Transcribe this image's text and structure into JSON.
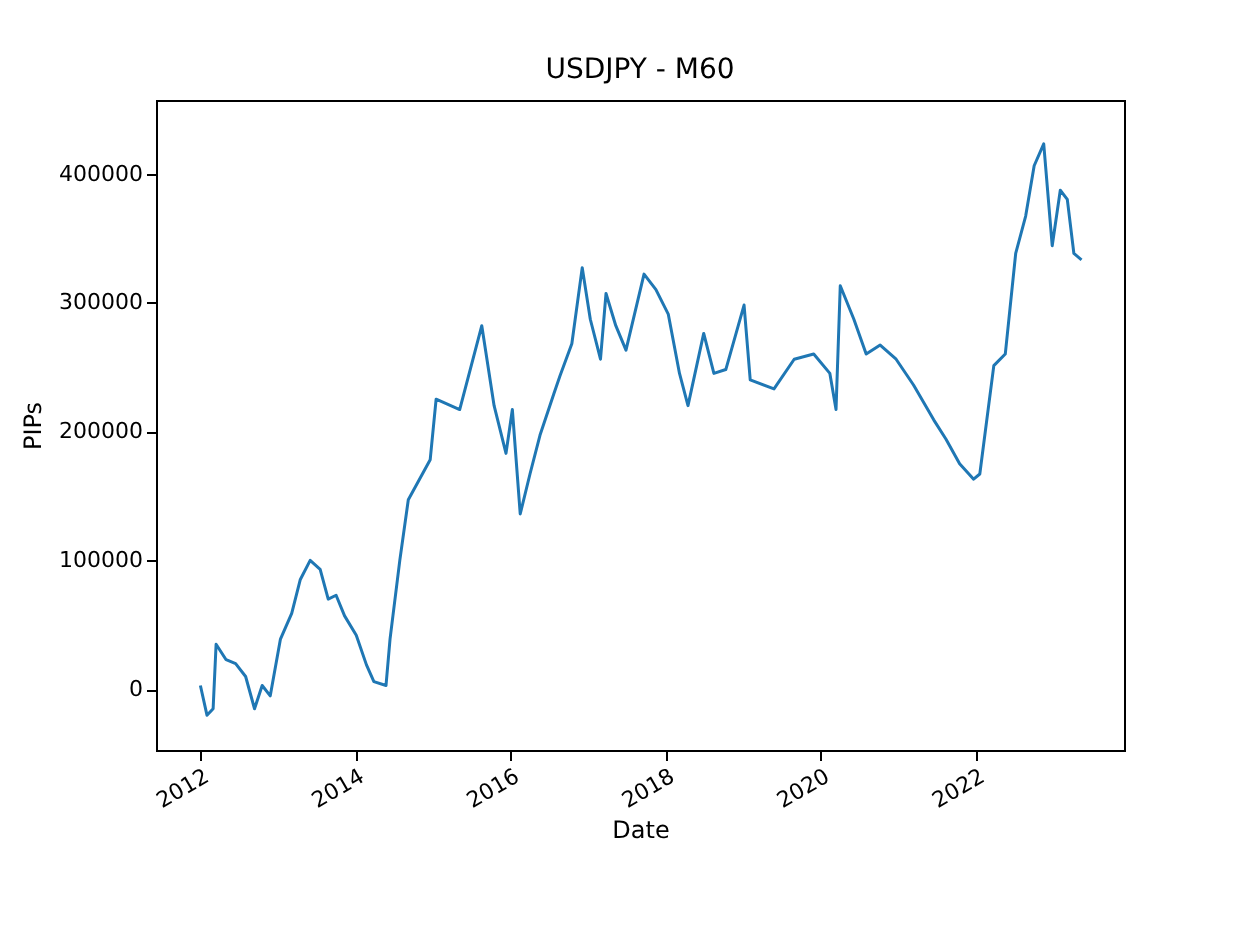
{
  "chart_data": {
    "type": "line",
    "title": "USDJPY - M60",
    "xlabel": "Date",
    "ylabel": "PIPs",
    "xlim": [
      "2011-06-06",
      "2023-11-28"
    ],
    "xticks": [
      "2012",
      "2014",
      "2016",
      "2018",
      "2020",
      "2022"
    ],
    "ylim": [
      -47000,
      457000
    ],
    "yticks": [
      0,
      100000,
      200000,
      300000,
      400000
    ],
    "grid": false,
    "marker": "none",
    "line_style": "solid",
    "x": [
      "2012-01-01",
      "2012-02-01",
      "2012-03-01",
      "2012-03-15",
      "2012-05-01",
      "2012-06-15",
      "2012-08-01",
      "2012-09-12",
      "2012-10-18",
      "2012-11-25",
      "2013-01-12",
      "2013-03-06",
      "2013-04-15",
      "2013-06-01",
      "2013-07-18",
      "2013-08-25",
      "2013-10-01",
      "2013-11-10",
      "2014-01-04",
      "2014-02-21",
      "2014-03-28",
      "2014-05-24",
      "2014-06-12",
      "2014-07-28",
      "2014-09-06",
      "2014-12-18",
      "2015-01-15",
      "2015-05-06",
      "2015-08-18",
      "2015-10-15",
      "2015-12-10",
      "2016-01-09",
      "2016-02-15",
      "2016-04-01",
      "2016-05-18",
      "2016-07-22",
      "2016-08-20",
      "2016-10-15",
      "2016-12-03",
      "2017-01-10",
      "2017-02-27",
      "2017-03-25",
      "2017-05-10",
      "2017-06-27",
      "2017-09-20",
      "2017-11-15",
      "2018-01-12",
      "2018-03-06",
      "2018-04-15",
      "2018-06-28",
      "2018-08-15",
      "2018-10-10",
      "2019-01-04",
      "2019-02-02",
      "2019-05-25",
      "2019-08-28",
      "2019-11-28",
      "2020-02-12",
      "2020-03-12",
      "2020-04-01",
      "2020-06-04",
      "2020-08-01",
      "2020-10-06",
      "2020-12-20",
      "2021-03-12",
      "2021-06-15",
      "2021-08-12",
      "2021-10-15",
      "2021-12-20",
      "2022-01-18",
      "2022-03-25",
      "2022-05-18",
      "2022-07-06",
      "2022-08-22",
      "2022-10-01",
      "2022-11-15",
      "2022-12-25",
      "2023-02-01",
      "2023-03-06",
      "2023-04-06",
      "2023-05-12"
    ],
    "series": [
      {
        "color": "#1f77b4",
        "values": [
          3000,
          -20000,
          -15000,
          35000,
          23000,
          20000,
          10000,
          -15000,
          3000,
          -5000,
          39000,
          59000,
          85000,
          100000,
          93000,
          70000,
          73000,
          57000,
          42000,
          19000,
          6000,
          3000,
          39000,
          100000,
          147000,
          178000,
          225000,
          217000,
          282000,
          220000,
          183000,
          217000,
          136000,
          167000,
          197000,
          229000,
          243000,
          268000,
          327000,
          287000,
          256000,
          307000,
          282000,
          263000,
          322000,
          310000,
          291000,
          245000,
          220000,
          276000,
          245000,
          248000,
          298000,
          240000,
          233000,
          256000,
          260000,
          245000,
          217000,
          313000,
          287000,
          260000,
          267000,
          256000,
          236000,
          209000,
          194000,
          175000,
          163000,
          167000,
          251000,
          260000,
          338000,
          367000,
          406000,
          423000,
          344000,
          387000,
          380000,
          338000,
          333000
        ]
      }
    ]
  }
}
